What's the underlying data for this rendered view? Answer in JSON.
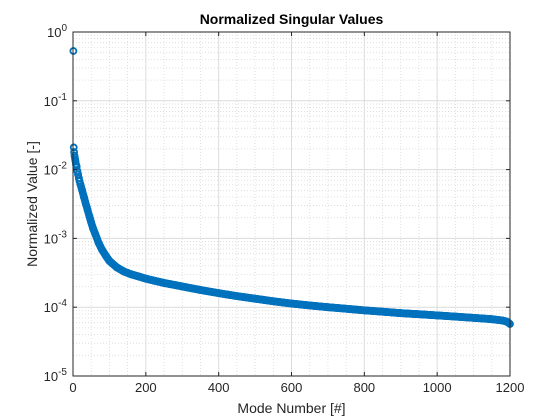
{
  "chart_data": {
    "type": "scatter",
    "title": "Normalized Singular Values",
    "xlabel": "Mode Number [#]",
    "ylabel": "Normalized Value [-]",
    "xlim": [
      0,
      1200
    ],
    "ylim": [
      1e-05,
      1
    ],
    "yscale": "log",
    "grid": true,
    "minor_grid": true,
    "legend": "none",
    "marker": "circle-open",
    "series_color": "#0072bd",
    "x_ticks": [
      {
        "value": 0,
        "label": "0"
      },
      {
        "value": 200,
        "label": "200"
      },
      {
        "value": 400,
        "label": "400"
      },
      {
        "value": 600,
        "label": "600"
      },
      {
        "value": 800,
        "label": "800"
      },
      {
        "value": 1000,
        "label": "1000"
      },
      {
        "value": 1200,
        "label": "1200"
      }
    ],
    "y_ticks": [
      {
        "value": 1,
        "base": "10",
        "exp": "0"
      },
      {
        "value": 0.1,
        "base": "10",
        "exp": "-1"
      },
      {
        "value": 0.01,
        "base": "10",
        "exp": "-2"
      },
      {
        "value": 0.001,
        "base": "10",
        "exp": "-3"
      },
      {
        "value": 0.0001,
        "base": "10",
        "exp": "-4"
      },
      {
        "value": 1e-05,
        "base": "10",
        "exp": "-5"
      }
    ],
    "series": [
      {
        "x": [
          1,
          2,
          3,
          4,
          5,
          6,
          7,
          8,
          9,
          10,
          12,
          14,
          16,
          18,
          20,
          25,
          30,
          35,
          40,
          45,
          50,
          55,
          60,
          70,
          80,
          90,
          100,
          120,
          140,
          160,
          180,
          200,
          220,
          250,
          280,
          300,
          350,
          400,
          450,
          500,
          550,
          600,
          650,
          700,
          750,
          800,
          850,
          900,
          950,
          1000,
          1050,
          1100,
          1150,
          1180,
          1190,
          1195,
          1200
        ],
        "y": [
          0.53,
          0.021,
          0.018,
          0.016,
          0.015,
          0.014,
          0.013,
          0.012,
          0.0115,
          0.011,
          0.0095,
          0.0085,
          0.0075,
          0.0068,
          0.0062,
          0.005,
          0.004,
          0.0032,
          0.0026,
          0.0021,
          0.0017,
          0.0014,
          0.0012,
          0.00087,
          0.00068,
          0.00056,
          0.00047,
          0.00038,
          0.00033,
          0.0003,
          0.00028,
          0.00026,
          0.000245,
          0.000225,
          0.00021,
          0.0002,
          0.000178,
          0.00016,
          0.000145,
          0.000133,
          0.000122,
          0.000113,
          0.000106,
          0.0001,
          9.5e-05,
          9e-05,
          8.6e-05,
          8.2e-05,
          7.9e-05,
          7.6e-05,
          7.3e-05,
          7e-05,
          6.7e-05,
          6.4e-05,
          6.2e-05,
          6e-05,
          5.7e-05
        ]
      }
    ]
  }
}
